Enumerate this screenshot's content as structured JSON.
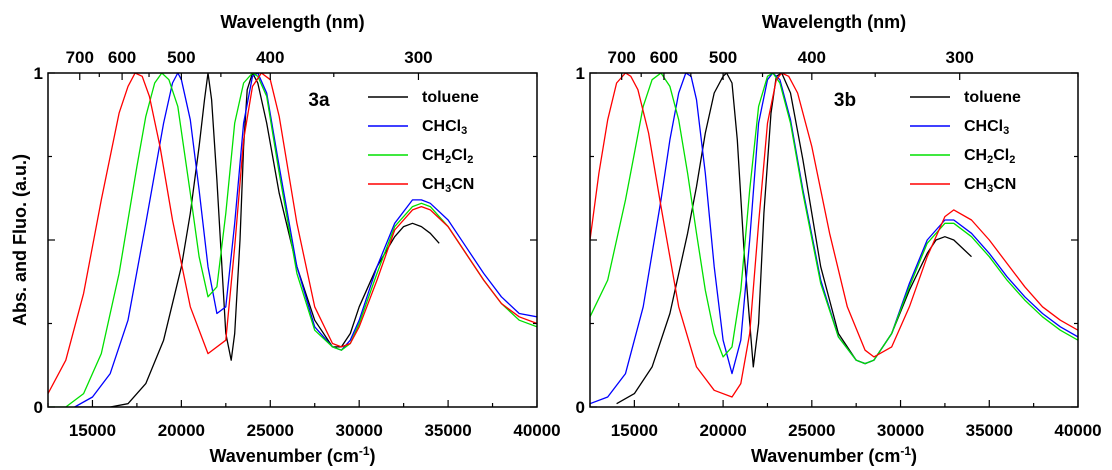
{
  "colors": {
    "toluene": "#000000",
    "CHCl3": "#0000ff",
    "CH2Cl2": "#00e000",
    "CH3CN": "#ff0000"
  },
  "chart_data": [
    {
      "type": "line",
      "panel_label": "3a",
      "xlabel": "Wavenumber (cm-1)",
      "xlabel_main": "Wavenumber (cm",
      "xlabel_sup": "-1",
      "xlabel_close": ")",
      "ylabel": "Abs. and Fluo. (a.u.)",
      "top_xlabel": "Wavelength (nm)",
      "xlim": [
        12500,
        40000
      ],
      "ylim": [
        0,
        1.0
      ],
      "x_ticks": [
        15000,
        20000,
        25000,
        30000,
        35000,
        40000
      ],
      "x_tick_labels": [
        "15000",
        "20000",
        "25000",
        "30000",
        "35000",
        "40000"
      ],
      "y_ticks": [
        0,
        1
      ],
      "y_tick_labels": [
        "0",
        "1"
      ],
      "top_ticks_nm": [
        700,
        600,
        500,
        400,
        300
      ],
      "top_tick_labels": [
        "700",
        "600",
        "500",
        "400",
        "300"
      ],
      "legend": [
        "toluene",
        "CHCl3",
        "CH2Cl2",
        "CH3CN"
      ],
      "legend_position": "top-right",
      "series": [
        {
          "name": "toluene",
          "key": "toluene",
          "x": [
            14000,
            15000,
            16000,
            17000,
            18000,
            19000,
            20000,
            20500,
            21000,
            21300,
            21500,
            21700,
            22000,
            22300,
            22500,
            22800,
            23000,
            23300,
            23500,
            23700,
            24000,
            24300,
            24800,
            25500,
            26500,
            27500,
            28500,
            29000,
            29500,
            30000,
            31000,
            32000,
            32500,
            33000,
            33500,
            34000,
            34500
          ],
          "y": [
            0.0,
            0.0,
            0.0,
            0.01,
            0.07,
            0.2,
            0.42,
            0.58,
            0.78,
            0.92,
            1.0,
            0.92,
            0.68,
            0.4,
            0.22,
            0.14,
            0.22,
            0.5,
            0.78,
            0.95,
            1.0,
            0.97,
            0.85,
            0.64,
            0.42,
            0.26,
            0.18,
            0.18,
            0.22,
            0.3,
            0.42,
            0.51,
            0.54,
            0.55,
            0.54,
            0.52,
            0.49
          ]
        },
        {
          "name": "CHCl3",
          "key": "CHCl3",
          "x": [
            14000,
            15000,
            16000,
            17000,
            18000,
            19000,
            19500,
            19800,
            20000,
            20500,
            21000,
            21500,
            22000,
            22500,
            23000,
            23500,
            24000,
            24300,
            24800,
            25500,
            26500,
            27500,
            28500,
            29000,
            29500,
            30000,
            31000,
            32000,
            33000,
            33500,
            34000,
            35000,
            36000,
            37000,
            38000,
            39000,
            40000
          ],
          "y": [
            0.0,
            0.03,
            0.1,
            0.26,
            0.55,
            0.85,
            0.97,
            1.0,
            0.98,
            0.86,
            0.65,
            0.42,
            0.28,
            0.3,
            0.55,
            0.85,
            0.99,
            1.0,
            0.94,
            0.72,
            0.42,
            0.24,
            0.18,
            0.17,
            0.2,
            0.26,
            0.42,
            0.55,
            0.62,
            0.62,
            0.61,
            0.56,
            0.48,
            0.4,
            0.33,
            0.28,
            0.27
          ]
        },
        {
          "name": "CH2Cl2",
          "key": "CH2Cl2",
          "x": [
            12500,
            13500,
            14500,
            15500,
            16500,
            17500,
            18000,
            18500,
            18900,
            19300,
            19800,
            20500,
            21000,
            21500,
            22000,
            22500,
            23000,
            23500,
            24000,
            24300,
            24800,
            25500,
            26500,
            27500,
            28500,
            29000,
            29500,
            30000,
            31000,
            32000,
            33000,
            33500,
            34000,
            35000,
            36000,
            37000,
            38000,
            39000,
            40000
          ],
          "y": [
            0.0,
            0.0,
            0.04,
            0.16,
            0.4,
            0.72,
            0.87,
            0.97,
            1.0,
            0.98,
            0.9,
            0.64,
            0.45,
            0.33,
            0.36,
            0.58,
            0.85,
            0.97,
            1.0,
            0.99,
            0.93,
            0.7,
            0.4,
            0.23,
            0.18,
            0.17,
            0.19,
            0.25,
            0.4,
            0.54,
            0.6,
            0.61,
            0.6,
            0.54,
            0.46,
            0.38,
            0.31,
            0.26,
            0.24
          ]
        },
        {
          "name": "CH3CN",
          "key": "CH3CN",
          "x": [
            12500,
            13500,
            14500,
            15500,
            16500,
            17000,
            17400,
            17800,
            18200,
            18800,
            19500,
            20500,
            21500,
            22500,
            23000,
            23500,
            24000,
            24500,
            25000,
            25500,
            26500,
            27500,
            28500,
            29000,
            29500,
            30000,
            31000,
            32000,
            33000,
            33500,
            34000,
            35000,
            36000,
            37000,
            38000,
            39000,
            40000
          ],
          "y": [
            0.04,
            0.14,
            0.34,
            0.62,
            0.88,
            0.96,
            1.0,
            0.99,
            0.93,
            0.78,
            0.56,
            0.3,
            0.16,
            0.2,
            0.48,
            0.8,
            0.96,
            1.0,
            0.98,
            0.87,
            0.55,
            0.3,
            0.19,
            0.18,
            0.19,
            0.24,
            0.38,
            0.53,
            0.59,
            0.6,
            0.59,
            0.54,
            0.46,
            0.38,
            0.31,
            0.27,
            0.25
          ]
        }
      ]
    },
    {
      "type": "line",
      "panel_label": "3b",
      "xlabel": "Wavenumber (cm-1)",
      "xlabel_main": "Wavenumber (cm",
      "xlabel_sup": "-1",
      "xlabel_close": ")",
      "ylabel": "",
      "top_xlabel": "Wavelength (nm)",
      "xlim": [
        12500,
        40000
      ],
      "ylim": [
        0,
        1.0
      ],
      "x_ticks": [
        15000,
        20000,
        25000,
        30000,
        35000,
        40000
      ],
      "x_tick_labels": [
        "15000",
        "20000",
        "25000",
        "30000",
        "35000",
        "40000"
      ],
      "y_ticks": [
        0,
        1
      ],
      "y_tick_labels": [
        "0",
        "1"
      ],
      "top_ticks_nm": [
        700,
        600,
        500,
        400,
        300
      ],
      "top_tick_labels": [
        "700",
        "600",
        "500",
        "400",
        "300"
      ],
      "legend": [
        "toluene",
        "CHCl3",
        "CH2Cl2",
        "CH3CN"
      ],
      "legend_position": "top-right",
      "series": [
        {
          "name": "toluene",
          "key": "toluene",
          "x": [
            14000,
            15000,
            16000,
            17000,
            18000,
            18500,
            19000,
            19500,
            20000,
            20200,
            20500,
            20800,
            21200,
            21700,
            22000,
            22300,
            22700,
            23000,
            23300,
            23800,
            24500,
            25500,
            26500,
            27500,
            28000,
            28500,
            29500,
            30500,
            31500,
            32000,
            32500,
            33000,
            34000
          ],
          "y": [
            0.01,
            0.04,
            0.12,
            0.28,
            0.52,
            0.66,
            0.82,
            0.94,
            0.99,
            1.0,
            0.97,
            0.8,
            0.45,
            0.12,
            0.25,
            0.58,
            0.88,
            0.99,
            1.0,
            0.94,
            0.74,
            0.42,
            0.22,
            0.14,
            0.13,
            0.14,
            0.22,
            0.35,
            0.46,
            0.5,
            0.51,
            0.5,
            0.45
          ]
        },
        {
          "name": "CHCl3",
          "key": "CHCl3",
          "x": [
            12500,
            13500,
            14500,
            15500,
            16500,
            17000,
            17500,
            17900,
            18200,
            18500,
            19000,
            19500,
            20000,
            20500,
            21000,
            21500,
            22000,
            22500,
            22800,
            23200,
            23800,
            24500,
            25500,
            26500,
            27500,
            28000,
            28500,
            29500,
            30500,
            31500,
            32500,
            33000,
            34000,
            35000,
            36000,
            37000,
            38000,
            39000,
            40000
          ],
          "y": [
            0.01,
            0.03,
            0.1,
            0.3,
            0.62,
            0.8,
            0.94,
            1.0,
            0.99,
            0.92,
            0.7,
            0.42,
            0.2,
            0.1,
            0.2,
            0.5,
            0.85,
            0.98,
            1.0,
            0.98,
            0.86,
            0.65,
            0.38,
            0.21,
            0.14,
            0.13,
            0.14,
            0.22,
            0.37,
            0.5,
            0.56,
            0.56,
            0.52,
            0.46,
            0.39,
            0.33,
            0.28,
            0.24,
            0.21
          ]
        },
        {
          "name": "CH2Cl2",
          "key": "CH2Cl2",
          "x": [
            12500,
            13500,
            14500,
            15000,
            15500,
            16000,
            16500,
            17000,
            17500,
            18000,
            18500,
            19000,
            19500,
            20000,
            20500,
            21000,
            21500,
            22000,
            22500,
            22800,
            23200,
            23800,
            24500,
            25500,
            26500,
            27500,
            28000,
            28500,
            29500,
            30500,
            31500,
            32500,
            33000,
            34000,
            35000,
            36000,
            37000,
            38000,
            39000,
            40000
          ],
          "y": [
            0.27,
            0.38,
            0.62,
            0.76,
            0.9,
            0.98,
            1.0,
            0.96,
            0.86,
            0.7,
            0.52,
            0.35,
            0.22,
            0.15,
            0.18,
            0.35,
            0.65,
            0.9,
            0.99,
            1.0,
            0.97,
            0.85,
            0.64,
            0.37,
            0.21,
            0.14,
            0.13,
            0.14,
            0.22,
            0.36,
            0.49,
            0.55,
            0.55,
            0.51,
            0.45,
            0.38,
            0.32,
            0.27,
            0.23,
            0.2
          ]
        },
        {
          "name": "CH3CN",
          "key": "CH3CN",
          "x": [
            12500,
            13000,
            13500,
            14000,
            14500,
            14800,
            15200,
            15800,
            16500,
            17500,
            18500,
            19500,
            20500,
            21000,
            21500,
            22000,
            22500,
            23000,
            23300,
            23700,
            24200,
            25000,
            26000,
            27000,
            28000,
            28500,
            29500,
            30500,
            31500,
            32500,
            33000,
            34000,
            35000,
            36000,
            37000,
            38000,
            39000,
            40000
          ],
          "y": [
            0.5,
            0.7,
            0.86,
            0.97,
            1.0,
            0.99,
            0.95,
            0.82,
            0.6,
            0.3,
            0.12,
            0.05,
            0.03,
            0.07,
            0.22,
            0.55,
            0.85,
            0.98,
            1.0,
            0.99,
            0.94,
            0.78,
            0.52,
            0.3,
            0.17,
            0.15,
            0.18,
            0.3,
            0.45,
            0.57,
            0.59,
            0.56,
            0.5,
            0.43,
            0.36,
            0.3,
            0.26,
            0.23
          ]
        }
      ]
    }
  ]
}
